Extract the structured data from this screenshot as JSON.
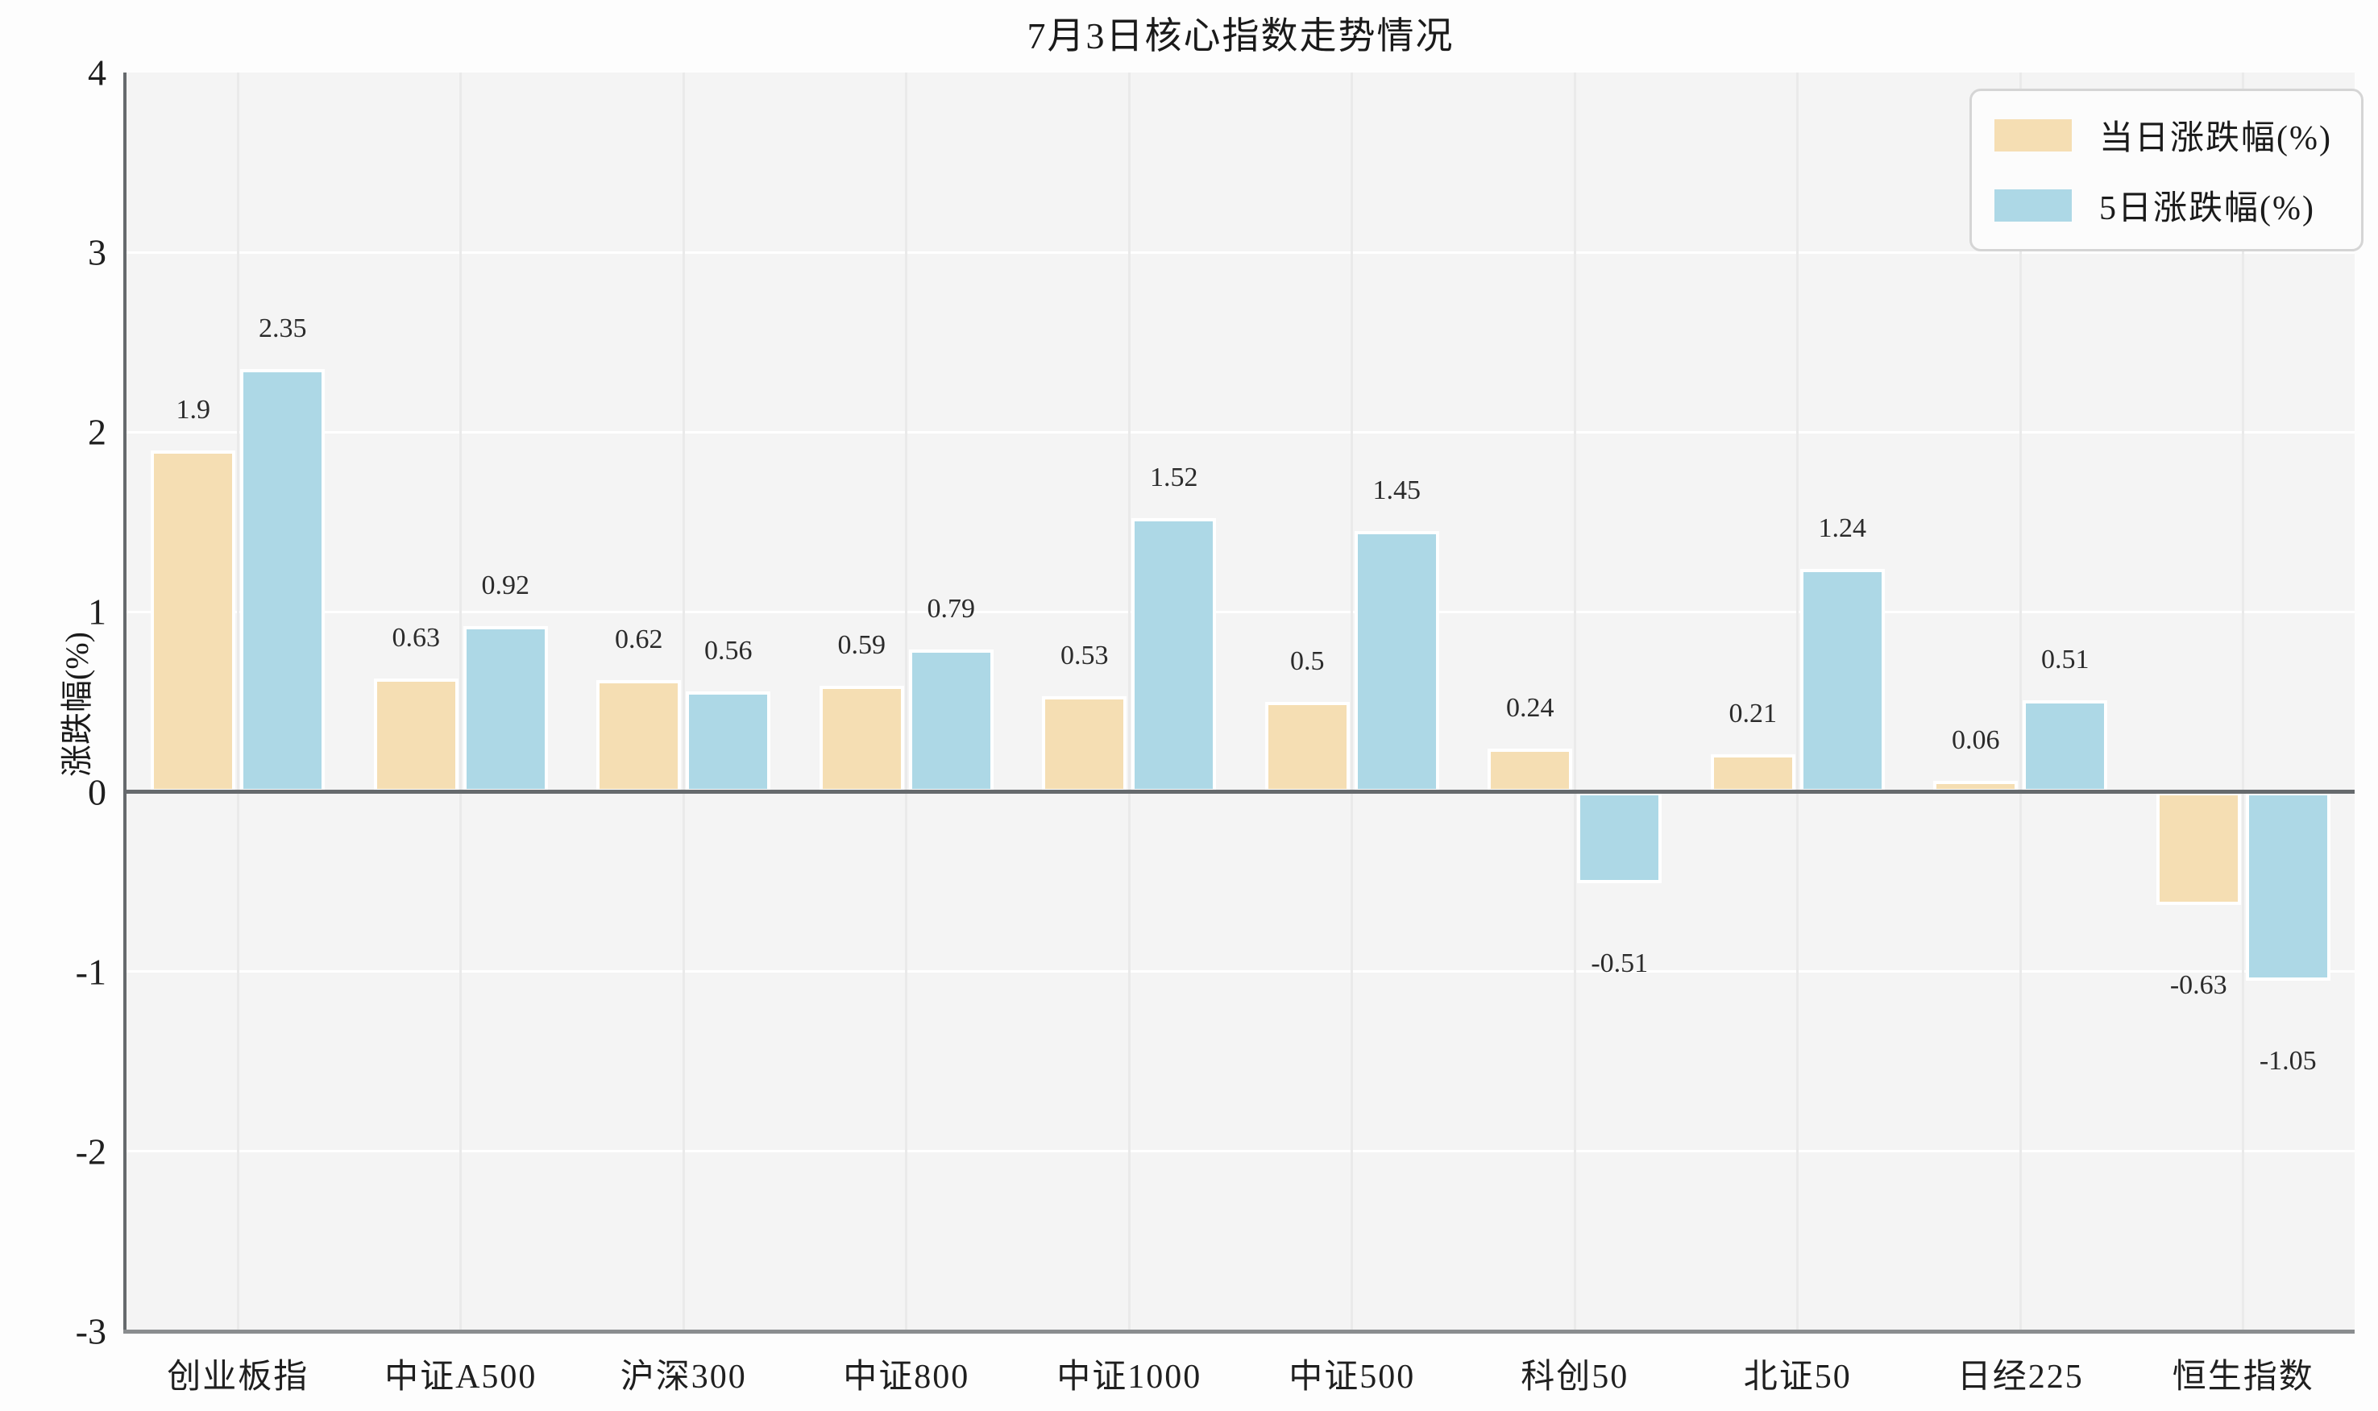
{
  "chart_data": {
    "type": "bar",
    "title": "7月3日核心指数走势情况",
    "xlabel": "",
    "ylabel": "涨跌幅(%)",
    "categories": [
      "创业板指",
      "中证A500",
      "沪深300",
      "中证800",
      "中证1000",
      "中证500",
      "科创50",
      "北证50",
      "日经225",
      "恒生指数"
    ],
    "series": [
      {
        "name": "当日涨跌幅(%)",
        "color": "#f5deb3",
        "values": [
          1.9,
          0.63,
          0.62,
          0.59,
          0.53,
          0.5,
          0.24,
          0.21,
          0.06,
          -0.63
        ]
      },
      {
        "name": "5日涨跌幅(%)",
        "color": "#add8e6",
        "values": [
          2.35,
          0.92,
          0.56,
          0.79,
          1.52,
          1.45,
          -0.51,
          1.24,
          0.51,
          -1.05
        ]
      }
    ],
    "ylim": [
      -3,
      4
    ],
    "yticks": [
      4,
      3,
      2,
      1,
      0,
      -1,
      -2,
      -3
    ],
    "grid": true,
    "legend_position": "upper right",
    "bar_edge_color": "#ffffff",
    "plot_background": "#f4f4f4",
    "zero_line_color": "#666a6d"
  }
}
